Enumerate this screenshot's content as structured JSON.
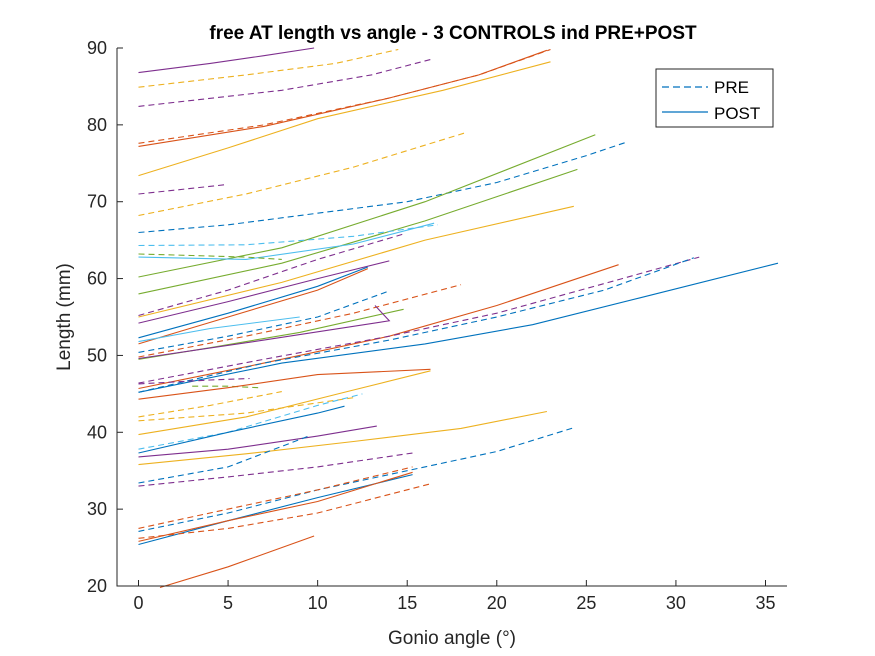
{
  "chart_data": {
    "type": "line",
    "title": "free AT length vs angle - 3 CONTROLS ind PRE+POST",
    "xlabel": "Gonio angle (°)",
    "ylabel": "Length (mm)",
    "xlim": [
      -1.2,
      36.2
    ],
    "ylim": [
      20,
      90
    ],
    "xticks": [
      0,
      5,
      10,
      15,
      20,
      25,
      30,
      35
    ],
    "yticks": [
      20,
      30,
      40,
      50,
      60,
      70,
      80,
      90
    ],
    "grid": false,
    "legend": {
      "position": "top-right",
      "entries": [
        {
          "label": "PRE",
          "style": "dashed",
          "color": "#0072bd"
        },
        {
          "label": "POST",
          "style": "solid",
          "color": "#0072bd"
        }
      ]
    },
    "series": [
      {
        "color": "#7e2f8e",
        "style": "solid",
        "x": [
          0,
          4,
          7,
          9.8
        ],
        "y": [
          86.8,
          88,
          89,
          90
        ]
      },
      {
        "color": "#edb120",
        "style": "dashed",
        "x": [
          0,
          6,
          11,
          14.5
        ],
        "y": [
          84.9,
          86.5,
          88,
          89.8
        ]
      },
      {
        "color": "#7e2f8e",
        "style": "dashed",
        "x": [
          0,
          8,
          13,
          16.3
        ],
        "y": [
          82.4,
          84.5,
          86.5,
          88.5
        ]
      },
      {
        "color": "#d95319",
        "style": "dashed",
        "x": [
          0,
          7,
          14,
          19,
          23
        ],
        "y": [
          77.6,
          80,
          83.5,
          86.5,
          89.8
        ]
      },
      {
        "color": "#d95319",
        "style": "solid",
        "x": [
          0,
          7,
          14,
          19,
          22.8
        ],
        "y": [
          77.2,
          79.8,
          83.5,
          86.5,
          89.7
        ]
      },
      {
        "color": "#edb120",
        "style": "solid",
        "x": [
          0,
          5,
          10,
          17,
          23
        ],
        "y": [
          73.4,
          77,
          80.8,
          84.5,
          88.2
        ]
      },
      {
        "color": "#edb120",
        "style": "dashed",
        "x": [
          0,
          6,
          12,
          18.3
        ],
        "y": [
          68.2,
          71,
          74.5,
          79
        ]
      },
      {
        "color": "#7e2f8e",
        "style": "dashed",
        "x": [
          0,
          2,
          4.8
        ],
        "y": [
          71,
          71.5,
          72.2
        ]
      },
      {
        "color": "#0072bd",
        "style": "dashed",
        "x": [
          0,
          5,
          10,
          15,
          20,
          25,
          27.3
        ],
        "y": [
          66,
          67,
          68.5,
          70,
          72.5,
          76,
          77.8
        ]
      },
      {
        "color": "#77ac30",
        "style": "solid",
        "x": [
          0,
          8,
          16,
          25.5
        ],
        "y": [
          60.2,
          64,
          70,
          78.7
        ]
      },
      {
        "color": "#77ac30",
        "style": "solid",
        "x": [
          0,
          8,
          16,
          24.5
        ],
        "y": [
          58,
          62,
          67.5,
          74.2
        ]
      },
      {
        "color": "#edb120",
        "style": "solid",
        "x": [
          0,
          8,
          16,
          24.3
        ],
        "y": [
          55,
          59.5,
          65,
          69.4
        ]
      },
      {
        "color": "#4dbeee",
        "style": "dashed",
        "x": [
          0,
          6,
          12,
          16.7
        ],
        "y": [
          64.3,
          64.4,
          65.5,
          67
        ]
      },
      {
        "color": "#4dbeee",
        "style": "solid",
        "x": [
          0,
          6,
          12,
          16.5
        ],
        "y": [
          62.8,
          62.5,
          64.5,
          67.2
        ]
      },
      {
        "color": "#77ac30",
        "style": "dashed",
        "x": [
          0,
          3,
          6,
          8
        ],
        "y": [
          63.2,
          63,
          62.8,
          62.5
        ]
      },
      {
        "color": "#7e2f8e",
        "style": "dashed",
        "x": [
          0,
          5,
          10,
          14.8
        ],
        "y": [
          55.2,
          58.5,
          62.5,
          65.8
        ]
      },
      {
        "color": "#7e2f8e",
        "style": "solid",
        "x": [
          0,
          5,
          10,
          14
        ],
        "y": [
          54.2,
          57,
          60,
          62.3
        ]
      },
      {
        "color": "#0072bd",
        "style": "solid",
        "x": [
          0,
          5,
          10,
          12.8
        ],
        "y": [
          52.3,
          55.5,
          59,
          61.5
        ]
      },
      {
        "color": "#d95319",
        "style": "solid",
        "x": [
          0,
          5,
          10,
          12.8
        ],
        "y": [
          51.5,
          55,
          58.5,
          61.3
        ]
      },
      {
        "color": "#0072bd",
        "style": "dashed",
        "x": [
          0,
          5,
          10,
          14
        ],
        "y": [
          50.4,
          52.5,
          55,
          58.4
        ]
      },
      {
        "color": "#d95319",
        "style": "dashed",
        "x": [
          0,
          6,
          12,
          18
        ],
        "y": [
          49.8,
          52.5,
          55.5,
          59.2
        ]
      },
      {
        "color": "#4dbeee",
        "style": "solid",
        "x": [
          0,
          4,
          9
        ],
        "y": [
          51.8,
          53.5,
          55
        ]
      },
      {
        "color": "#77ac30",
        "style": "solid",
        "x": [
          0,
          4,
          9,
          14.8
        ],
        "y": [
          49.5,
          51,
          53,
          56
        ]
      },
      {
        "color": "#7e2f8e",
        "style": "solid",
        "x": [
          0,
          7,
          14,
          13.2
        ],
        "y": [
          49.6,
          52,
          54.5,
          56.5
        ]
      },
      {
        "color": "#d95319",
        "style": "solid",
        "x": [
          0,
          7,
          14,
          20,
          26.8
        ],
        "y": [
          45.7,
          49,
          52.5,
          56.5,
          61.8
        ]
      },
      {
        "color": "#7e2f8e",
        "style": "dashed",
        "x": [
          0,
          7,
          14,
          20,
          27,
          31.3
        ],
        "y": [
          46.4,
          49.5,
          52.5,
          55.5,
          60,
          62.8
        ]
      },
      {
        "color": "#0072bd",
        "style": "dashed",
        "x": [
          0,
          7,
          14,
          20,
          26,
          31
        ],
        "y": [
          45.2,
          49,
          52,
          55,
          58.5,
          62.7
        ]
      },
      {
        "color": "#0072bd",
        "style": "solid",
        "x": [
          0,
          8,
          16,
          22,
          28,
          35.7
        ],
        "y": [
          45.2,
          49,
          51.5,
          54,
          57.5,
          62
        ]
      },
      {
        "color": "#7e2f8e",
        "style": "dashed",
        "x": [
          0,
          4,
          6.2
        ],
        "y": [
          46.3,
          46.8,
          47
        ]
      },
      {
        "color": "#77ac30",
        "style": "dashed",
        "x": [
          3,
          5,
          6.7
        ],
        "y": [
          46,
          46,
          45.8
        ]
      },
      {
        "color": "#edb120",
        "style": "dashed",
        "x": [
          0,
          4,
          8
        ],
        "y": [
          42,
          43.5,
          45.3
        ]
      },
      {
        "color": "#d95319",
        "style": "solid",
        "x": [
          0,
          5,
          10,
          16.3
        ],
        "y": [
          44.3,
          45.8,
          47.5,
          48.2
        ]
      },
      {
        "color": "#edb120",
        "style": "dashed",
        "x": [
          0,
          6,
          12
        ],
        "y": [
          41.5,
          42.5,
          44.5
        ]
      },
      {
        "color": "#edb120",
        "style": "solid",
        "x": [
          0,
          6,
          12,
          16.3
        ],
        "y": [
          39.7,
          42,
          45.5,
          48
        ]
      },
      {
        "color": "#4dbeee",
        "style": "dashed",
        "x": [
          0,
          5,
          10,
          12.5
        ],
        "y": [
          37.8,
          40,
          43.5,
          45
        ]
      },
      {
        "color": "#0072bd",
        "style": "solid",
        "x": [
          0,
          5,
          10,
          11.5
        ],
        "y": [
          37.3,
          40,
          42.5,
          43.4
        ]
      },
      {
        "color": "#7e2f8e",
        "style": "solid",
        "x": [
          0,
          5,
          10,
          13.3
        ],
        "y": [
          36.8,
          37.8,
          39.5,
          40.8
        ]
      },
      {
        "color": "#edb120",
        "style": "solid",
        "x": [
          0,
          6,
          12,
          18,
          22.8
        ],
        "y": [
          35.8,
          37.2,
          38.8,
          40.5,
          42.7
        ]
      },
      {
        "color": "#0072bd",
        "style": "dashed",
        "x": [
          0,
          5,
          9.5
        ],
        "y": [
          33.4,
          35.5,
          39.5
        ]
      },
      {
        "color": "#7e2f8e",
        "style": "dashed",
        "x": [
          0,
          5,
          10,
          15.3
        ],
        "y": [
          33,
          34.2,
          35.5,
          37.3
        ]
      },
      {
        "color": "#0072bd",
        "style": "dashed",
        "x": [
          0,
          5,
          10,
          15,
          20,
          24.3
        ],
        "y": [
          27.1,
          29.5,
          32.5,
          35,
          37.5,
          40.6
        ]
      },
      {
        "color": "#d95319",
        "style": "dashed",
        "x": [
          0,
          5,
          10,
          15.3
        ],
        "y": [
          27.5,
          30,
          32.5,
          35.5
        ]
      },
      {
        "color": "#0072bd",
        "style": "solid",
        "x": [
          0,
          5,
          10,
          15.3
        ],
        "y": [
          25.4,
          28.5,
          31.5,
          34.5
        ]
      },
      {
        "color": "#d95319",
        "style": "solid",
        "x": [
          0,
          5,
          10,
          15.3
        ],
        "y": [
          25.8,
          28.5,
          31,
          34.8
        ]
      },
      {
        "color": "#d95319",
        "style": "dashed",
        "x": [
          0,
          5,
          10,
          16.3
        ],
        "y": [
          26.2,
          27.5,
          29.5,
          33.3
        ]
      },
      {
        "color": "#d95319",
        "style": "solid",
        "x": [
          1.2,
          5,
          9.8
        ],
        "y": [
          19.8,
          22.5,
          26.5
        ]
      }
    ]
  }
}
